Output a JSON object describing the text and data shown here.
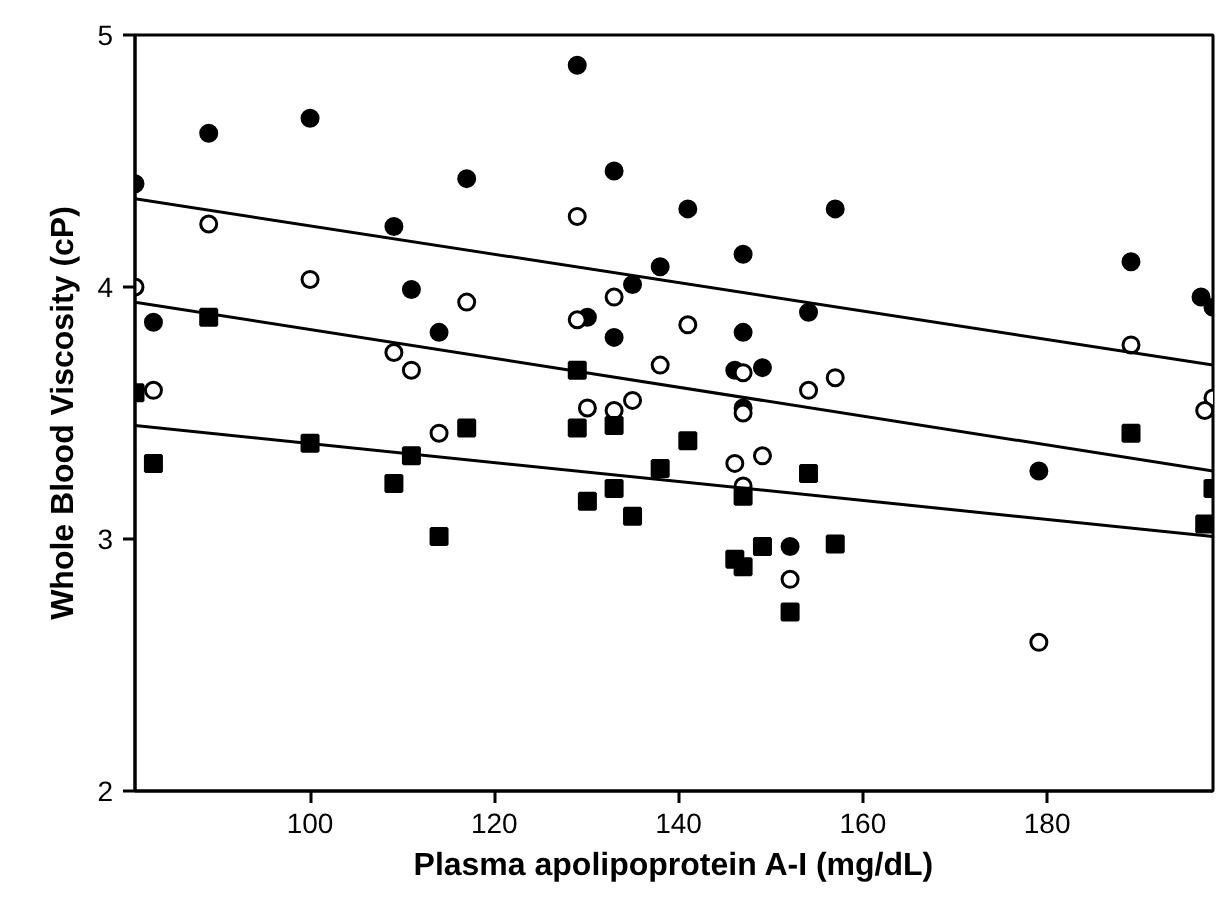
{
  "chart_data": {
    "type": "scatter",
    "xlabel": "Plasma apolipoprotein A-I (mg/dL)",
    "ylabel": "Whole Blood Viscosity (cP)",
    "xlim": [
      81,
      198
    ],
    "ylim": [
      2,
      5
    ],
    "xticks": [
      100,
      120,
      140,
      160,
      180
    ],
    "yticks": [
      2,
      3,
      4,
      5
    ],
    "grid": false,
    "series": [
      {
        "marker": "circle",
        "color": "#000000",
        "x": [
          81,
          89,
          100,
          117,
          109.1,
          111,
          83,
          114,
          129,
          133,
          141,
          157,
          147,
          138,
          135,
          154.1,
          130.1,
          133,
          147,
          146.1,
          149.1,
          147,
          152.1,
          189.1,
          196.7,
          198,
          179.1
        ],
        "values": [
          4.41,
          4.61,
          4.67,
          4.43,
          4.24,
          3.99,
          3.86,
          3.82,
          4.88,
          4.46,
          4.31,
          4.31,
          4.13,
          4.08,
          4.01,
          3.9,
          3.88,
          3.8,
          3.82,
          3.67,
          3.68,
          3.52,
          2.97,
          4.1,
          3.96,
          3.92,
          3.27
        ]
      },
      {
        "marker": "circle",
        "color": "#ffffff",
        "x": [
          89,
          81,
          100,
          117,
          109.1,
          111,
          83,
          114,
          129,
          133,
          129,
          141,
          138,
          147,
          154.1,
          157,
          130.1,
          133,
          135,
          147,
          146.1,
          149.1,
          147,
          152.1,
          189.1,
          198,
          197.1,
          179.1
        ],
        "values": [
          4.25,
          4.0,
          4.03,
          3.94,
          3.74,
          3.67,
          3.59,
          3.42,
          4.28,
          3.96,
          3.87,
          3.85,
          3.69,
          3.66,
          3.59,
          3.64,
          3.52,
          3.51,
          3.55,
          3.5,
          3.3,
          3.33,
          3.21,
          2.84,
          3.77,
          3.56,
          3.51,
          2.59
        ]
      },
      {
        "marker": "square",
        "color": "#000000",
        "x": [
          89,
          81,
          83,
          100,
          111,
          109.1,
          114,
          117,
          129,
          129,
          133,
          141,
          138,
          130.1,
          133,
          135,
          154.1,
          147,
          146.1,
          147,
          149.1,
          157,
          152.1,
          189.1,
          198,
          197.1
        ],
        "values": [
          3.88,
          3.58,
          3.3,
          3.38,
          3.33,
          3.22,
          3.01,
          3.44,
          3.67,
          3.44,
          3.45,
          3.39,
          3.28,
          3.15,
          3.2,
          3.09,
          3.26,
          3.17,
          2.92,
          2.89,
          2.97,
          2.98,
          2.71,
          3.42,
          3.2,
          3.06
        ]
      },
      {
        "type": "line",
        "color": "#000000",
        "x": [
          81,
          198
        ],
        "values": [
          4.35,
          3.69
        ]
      },
      {
        "type": "line",
        "color": "#000000",
        "x": [
          81,
          198
        ],
        "values": [
          3.94,
          3.27
        ]
      },
      {
        "type": "line",
        "color": "#000000",
        "x": [
          81,
          198
        ],
        "values": [
          3.45,
          3.01
        ]
      }
    ]
  }
}
